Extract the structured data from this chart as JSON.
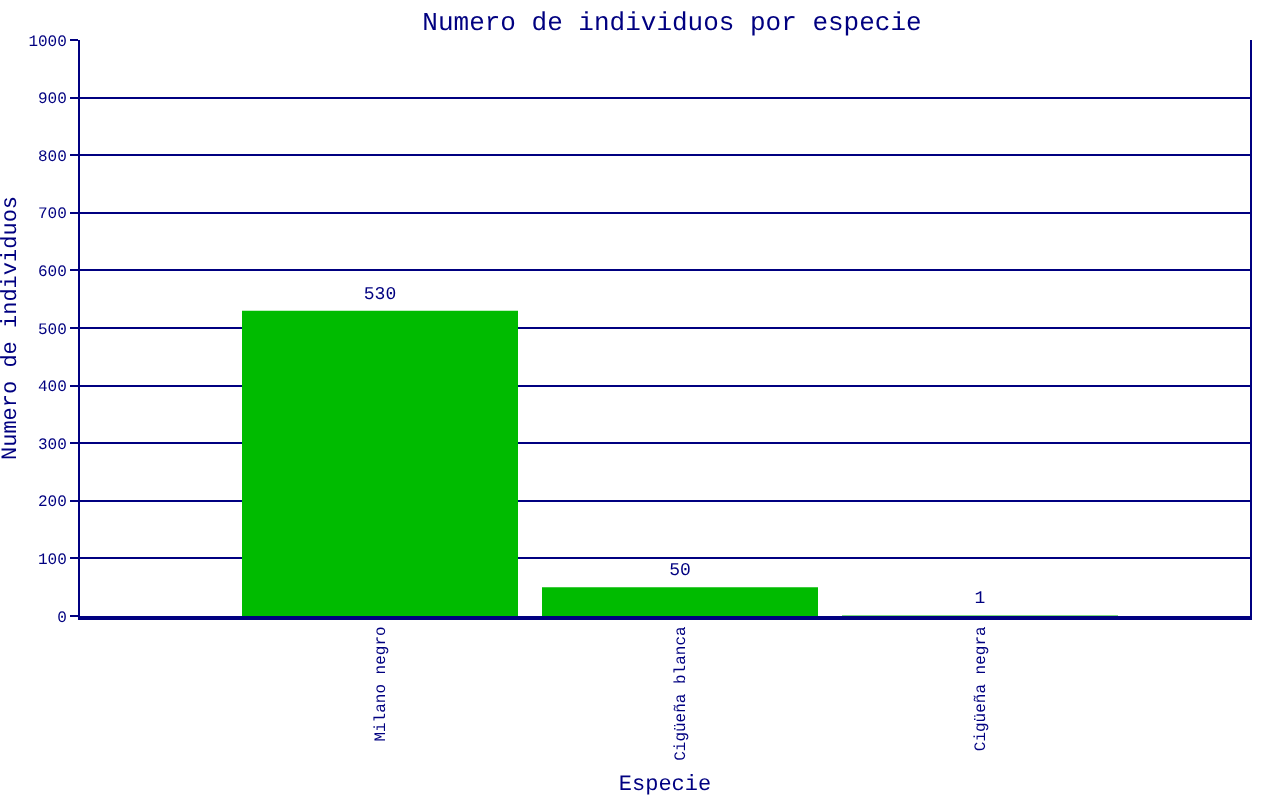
{
  "chart_data": {
    "type": "bar",
    "title": "Numero de individuos por especie",
    "xlabel": "Especie",
    "ylabel": "Numero de individuos",
    "categories": [
      "Milano negro",
      "Cigüeña blanca",
      "Cigüeña negra"
    ],
    "values": [
      530,
      50,
      1
    ],
    "color": "#00bb00",
    "ylim": [
      0,
      1000
    ],
    "yticks": [
      0,
      100,
      200,
      300,
      400,
      500,
      600,
      700,
      800,
      900,
      1000
    ],
    "grid": "y",
    "data_labels": true
  }
}
